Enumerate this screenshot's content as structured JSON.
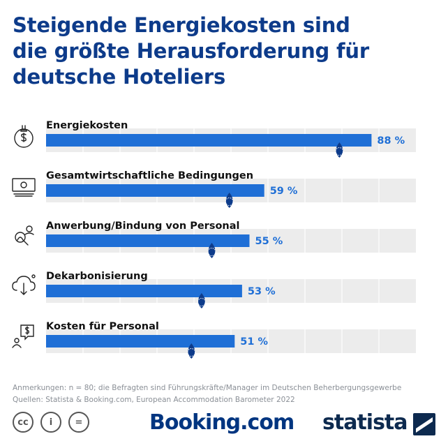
{
  "title": {
    "line1": "Steigende Energiekosten sind",
    "line2": "die größte Herausforderung für",
    "line3": "deutsche Hoteliers"
  },
  "chart_data": {
    "type": "bar",
    "orientation": "horizontal",
    "categories": [
      "Energiekosten",
      "Gesamtwirtschaftliche Bedingungen",
      "Anwerbung/Bindung von Personal",
      "Dekarbonisierung",
      "Kosten für Personal"
    ],
    "values": [
      88,
      59,
      55,
      53,
      51
    ],
    "value_labels": [
      "88 %",
      "59 %",
      "55 %",
      "53 %",
      "51 %"
    ],
    "category_icons": [
      "plug-dollar-icon",
      "banknote-icon",
      "people-search-icon",
      "cloud-download-icon",
      "chat-dollar-icon"
    ],
    "xlim": [
      0,
      100
    ],
    "grid": true,
    "bar_color": "#1f6fd6",
    "track_color": "#ececec",
    "marker_color": "#0d3b8a"
  },
  "notes": {
    "line1": "Anmerkungen: n = 80; die Befragten sind Führungskräfte/Manager im Deutschen Beherbergungsgewerbe",
    "line2": "Quellen: Statista & Booking.com, European Accommodation Barometer 2022"
  },
  "footer": {
    "cc_icons": [
      "cc-icon",
      "by-icon",
      "nd-icon"
    ],
    "cc_glyphs": [
      "cc",
      "i",
      "="
    ],
    "brand1": "Booking.com",
    "brand2": "statista"
  }
}
